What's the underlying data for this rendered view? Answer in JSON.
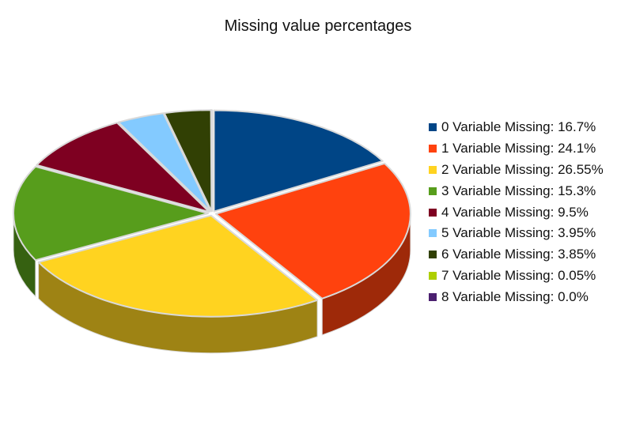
{
  "chart_data": {
    "type": "pie",
    "title": "Missing value percentages",
    "style": "3d-exploded",
    "legend_position": "right",
    "slices": [
      {
        "label": "0 Variable Missing: 16.7%",
        "value": 16.7,
        "color": "#004586"
      },
      {
        "label": "1 Variable Missing: 24.1%",
        "value": 24.1,
        "color": "#ff420e"
      },
      {
        "label": "2 Variable Missing: 26.55%",
        "value": 26.55,
        "color": "#ffd320"
      },
      {
        "label": "3 Variable Missing: 15.3%",
        "value": 15.3,
        "color": "#579d1c"
      },
      {
        "label": "4 Variable Missing: 9.5%",
        "value": 9.5,
        "color": "#7e0021"
      },
      {
        "label": "5 Variable Missing: 3.95%",
        "value": 3.95,
        "color": "#83caff"
      },
      {
        "label": "6 Variable Missing: 3.85%",
        "value": 3.85,
        "color": "#314004"
      },
      {
        "label": "7 Variable Missing: 0.05%",
        "value": 0.05,
        "color": "#aecf00"
      },
      {
        "label": "8 Variable Missing: 0.0%",
        "value": 0.0,
        "color": "#4b1f6f"
      }
    ]
  }
}
